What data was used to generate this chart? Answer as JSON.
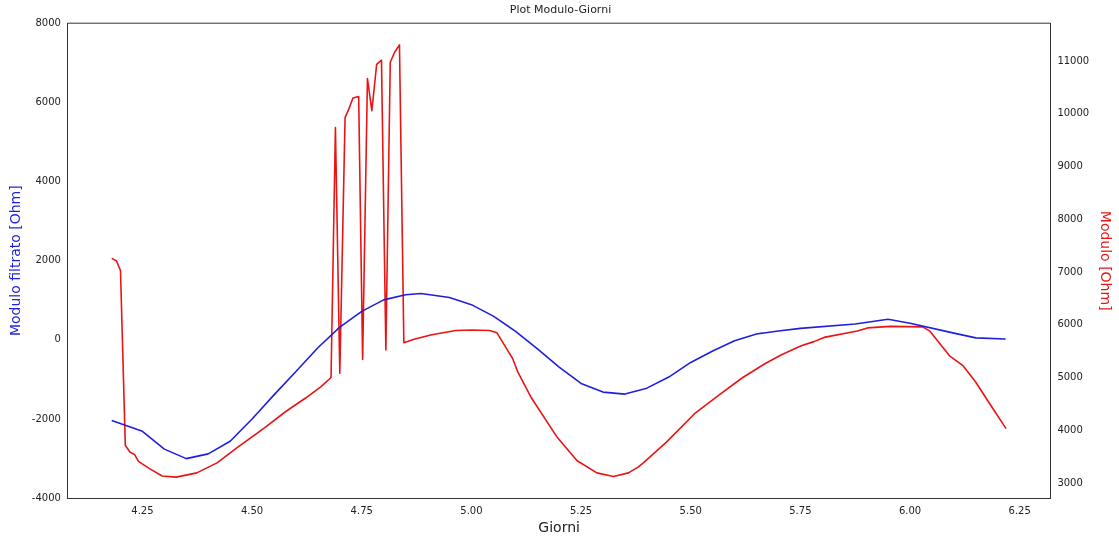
{
  "chart_data": {
    "type": "line",
    "title": "Plot Modulo-Giorni",
    "xlabel": "Giorni",
    "ylabel": "Modulo filtrato [Ohm]",
    "y2label": "Modulo [Ohm]",
    "xlim": [
      4.08,
      6.32
    ],
    "xticks": [
      4.25,
      {
        "value": 4.5,
        "label": "4.50"
      },
      4.75,
      {
        "value": 5,
        "label": "5.00"
      },
      5.25,
      {
        "value": 5.5,
        "label": "5.50"
      },
      5.75,
      {
        "value": 6,
        "label": "6.00"
      },
      6.25
    ],
    "ylim": [
      -4000,
      8000
    ],
    "yticks": [
      -4000,
      -2000,
      0,
      2000,
      4000,
      6000,
      8000
    ],
    "y2lim": [
      2710,
      11720
    ],
    "y2ticks": [
      3000,
      4000,
      5000,
      6000,
      7000,
      8000,
      9000,
      10000,
      11000
    ],
    "grid": false,
    "legend": false,
    "marker": "none",
    "line_style": "solid",
    "series": [
      {
        "color": "#1f1fe0",
        "x": [
          4.18,
          4.25,
          4.3,
          4.35,
          4.4,
          4.45,
          4.5,
          4.55,
          4.6,
          4.65,
          4.7,
          4.75,
          4.8,
          4.85,
          4.885,
          4.95,
          5.0,
          5.05,
          5.1,
          5.15,
          5.2,
          5.25,
          5.3,
          5.35,
          5.4,
          5.45,
          5.5,
          5.55,
          5.6,
          5.65,
          5.7,
          5.75,
          5.875,
          5.95,
          6.0,
          6.1,
          6.15,
          6.218
        ],
        "values": [
          -2040,
          -2310,
          -2760,
          -3000,
          -2880,
          -2560,
          -2000,
          -1390,
          -800,
          -200,
          320,
          720,
          1010,
          1140,
          1170,
          1070,
          890,
          600,
          220,
          -220,
          -690,
          -1100,
          -1320,
          -1370,
          -1220,
          -940,
          -570,
          -280,
          -20,
          150,
          225,
          290,
          400,
          520,
          420,
          170,
          50,
          20
        ]
      },
      {
        "color": "#e81515",
        "axis": "y2",
        "x": [
          4.18,
          4.191,
          4.2,
          4.211,
          4.222,
          4.232,
          4.241,
          4.266,
          4.295,
          4.327,
          4.374,
          4.42,
          4.466,
          4.529,
          4.576,
          4.622,
          4.658,
          4.68,
          4.69,
          4.7,
          4.712,
          4.72,
          4.73,
          4.743,
          4.752,
          4.763,
          4.773,
          4.784,
          4.795,
          4.805,
          4.815,
          4.825,
          4.836,
          4.846,
          4.871,
          4.91,
          4.964,
          5.0,
          5.042,
          5.058,
          5.094,
          5.106,
          5.137,
          5.196,
          5.241,
          5.286,
          5.324,
          5.358,
          5.38,
          5.392,
          5.444,
          5.511,
          5.565,
          5.617,
          5.669,
          5.707,
          5.752,
          5.781,
          5.804,
          5.88,
          5.903,
          5.955,
          6.029,
          6.045,
          6.09,
          6.12,
          6.15,
          6.188,
          6.219
        ],
        "values": [
          7260,
          7210,
          7030,
          3710,
          3580,
          3540,
          3410,
          3270,
          3130,
          3110,
          3190,
          3380,
          3670,
          4050,
          4350,
          4610,
          4830,
          5000,
          9740,
          5080,
          9930,
          10080,
          10300,
          10330,
          5340,
          10670,
          10060,
          10940,
          11020,
          5520,
          10980,
          11170,
          11310,
          5660,
          5730,
          5810,
          5890,
          5900,
          5890,
          5850,
          5360,
          5100,
          4610,
          3860,
          3420,
          3190,
          3120,
          3190,
          3300,
          3380,
          3770,
          4330,
          4670,
          4990,
          5260,
          5430,
          5600,
          5680,
          5760,
          5880,
          5940,
          5970,
          5960,
          5880,
          5410,
          5230,
          4910,
          4420,
          4030
        ]
      }
    ]
  }
}
